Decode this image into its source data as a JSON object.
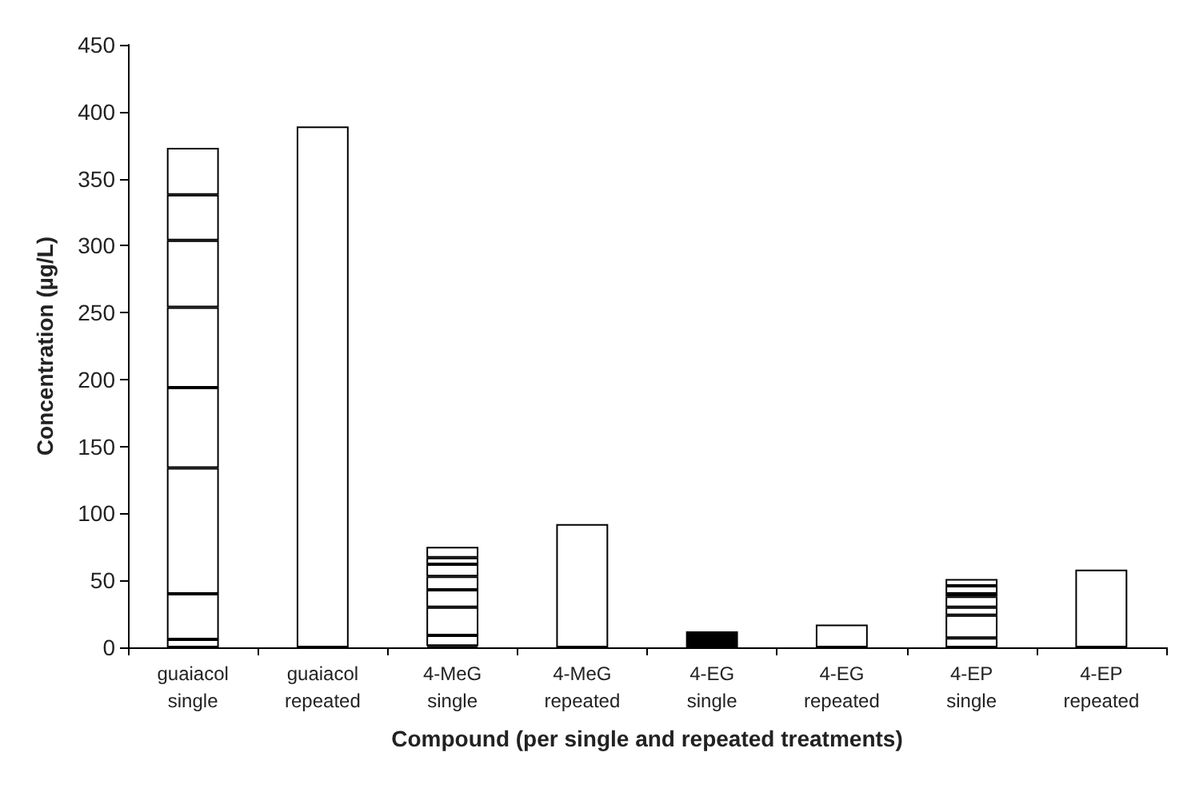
{
  "chart_data": {
    "type": "bar",
    "stacked": true,
    "xlabel": "Compound (per single and repeated treatments)",
    "ylabel": "Concentration (µg/L)",
    "categories": [
      "guaiacol\nsingle",
      "guaiacol\nrepeated",
      "4-MeG\nsingle",
      "4-MeG\nrepeated",
      "4-EG\nsingle",
      "4-EG\nrepeated",
      "4-EP\nsingle",
      "4-EP\nrepeated"
    ],
    "ylim": [
      0,
      450
    ],
    "yticks": [
      0,
      50,
      100,
      150,
      200,
      250,
      300,
      350,
      400,
      450
    ],
    "grid": false,
    "series": [
      {
        "colors": [
          "#ffffff",
          "#ffffff",
          "#ffffff",
          "#ffffff",
          "#000000",
          "#ffffff",
          "#ffffff",
          "#ffffff"
        ],
        "values": [
          6,
          389,
          1,
          92,
          12,
          17,
          7,
          58
        ]
      },
      {
        "color": "#ffffff",
        "values": [
          34,
          null,
          8,
          null,
          null,
          null,
          17,
          null
        ]
      },
      {
        "color": "#ffffff",
        "values": [
          94,
          null,
          21,
          null,
          null,
          null,
          6,
          null
        ]
      },
      {
        "color": "#ffffff",
        "values": [
          60,
          null,
          13,
          null,
          null,
          null,
          8,
          null
        ]
      },
      {
        "color": "#ffffff",
        "values": [
          60,
          null,
          10,
          null,
          null,
          null,
          2,
          null
        ]
      },
      {
        "color": "#ffffff",
        "values": [
          50,
          null,
          9,
          null,
          null,
          null,
          6,
          null
        ]
      },
      {
        "color": "#ffffff",
        "values": [
          34,
          null,
          5,
          null,
          null,
          null,
          5,
          null
        ]
      },
      {
        "color": "#ffffff",
        "values": [
          35,
          null,
          8,
          null,
          null,
          null,
          null,
          null
        ]
      }
    ]
  }
}
